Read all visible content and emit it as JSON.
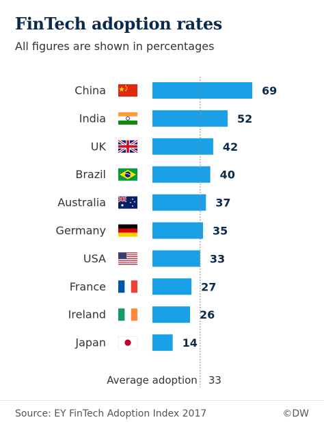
{
  "header": {
    "title": "FinTech adoption rates",
    "subtitle": "All figures are shown in percentages"
  },
  "footer": {
    "source": "Source: EY FinTech Adoption Index 2017",
    "credit": "©DW"
  },
  "colors": {
    "bar": "#1aa0e6",
    "value_text": "#0b2a4a",
    "label_text": "#333333",
    "average_line": "#8a8a8a"
  },
  "chart_data": {
    "type": "bar",
    "orientation": "horizontal",
    "title": "FinTech adoption rates",
    "subtitle": "All figures are shown in percentages",
    "categories": [
      "China",
      "India",
      "UK",
      "Brazil",
      "Australia",
      "Germany",
      "USA",
      "France",
      "Ireland",
      "Japan"
    ],
    "flag_icons": [
      "china-flag-icon",
      "india-flag-icon",
      "uk-flag-icon",
      "brazil-flag-icon",
      "australia-flag-icon",
      "germany-flag-icon",
      "usa-flag-icon",
      "france-flag-icon",
      "ireland-flag-icon",
      "japan-flag-icon"
    ],
    "values": [
      69,
      52,
      42,
      40,
      37,
      35,
      33,
      27,
      26,
      14
    ],
    "xlim": [
      0,
      69
    ],
    "average": {
      "label": "Average adoption",
      "value": 33
    },
    "grid": false,
    "legend": "none"
  }
}
